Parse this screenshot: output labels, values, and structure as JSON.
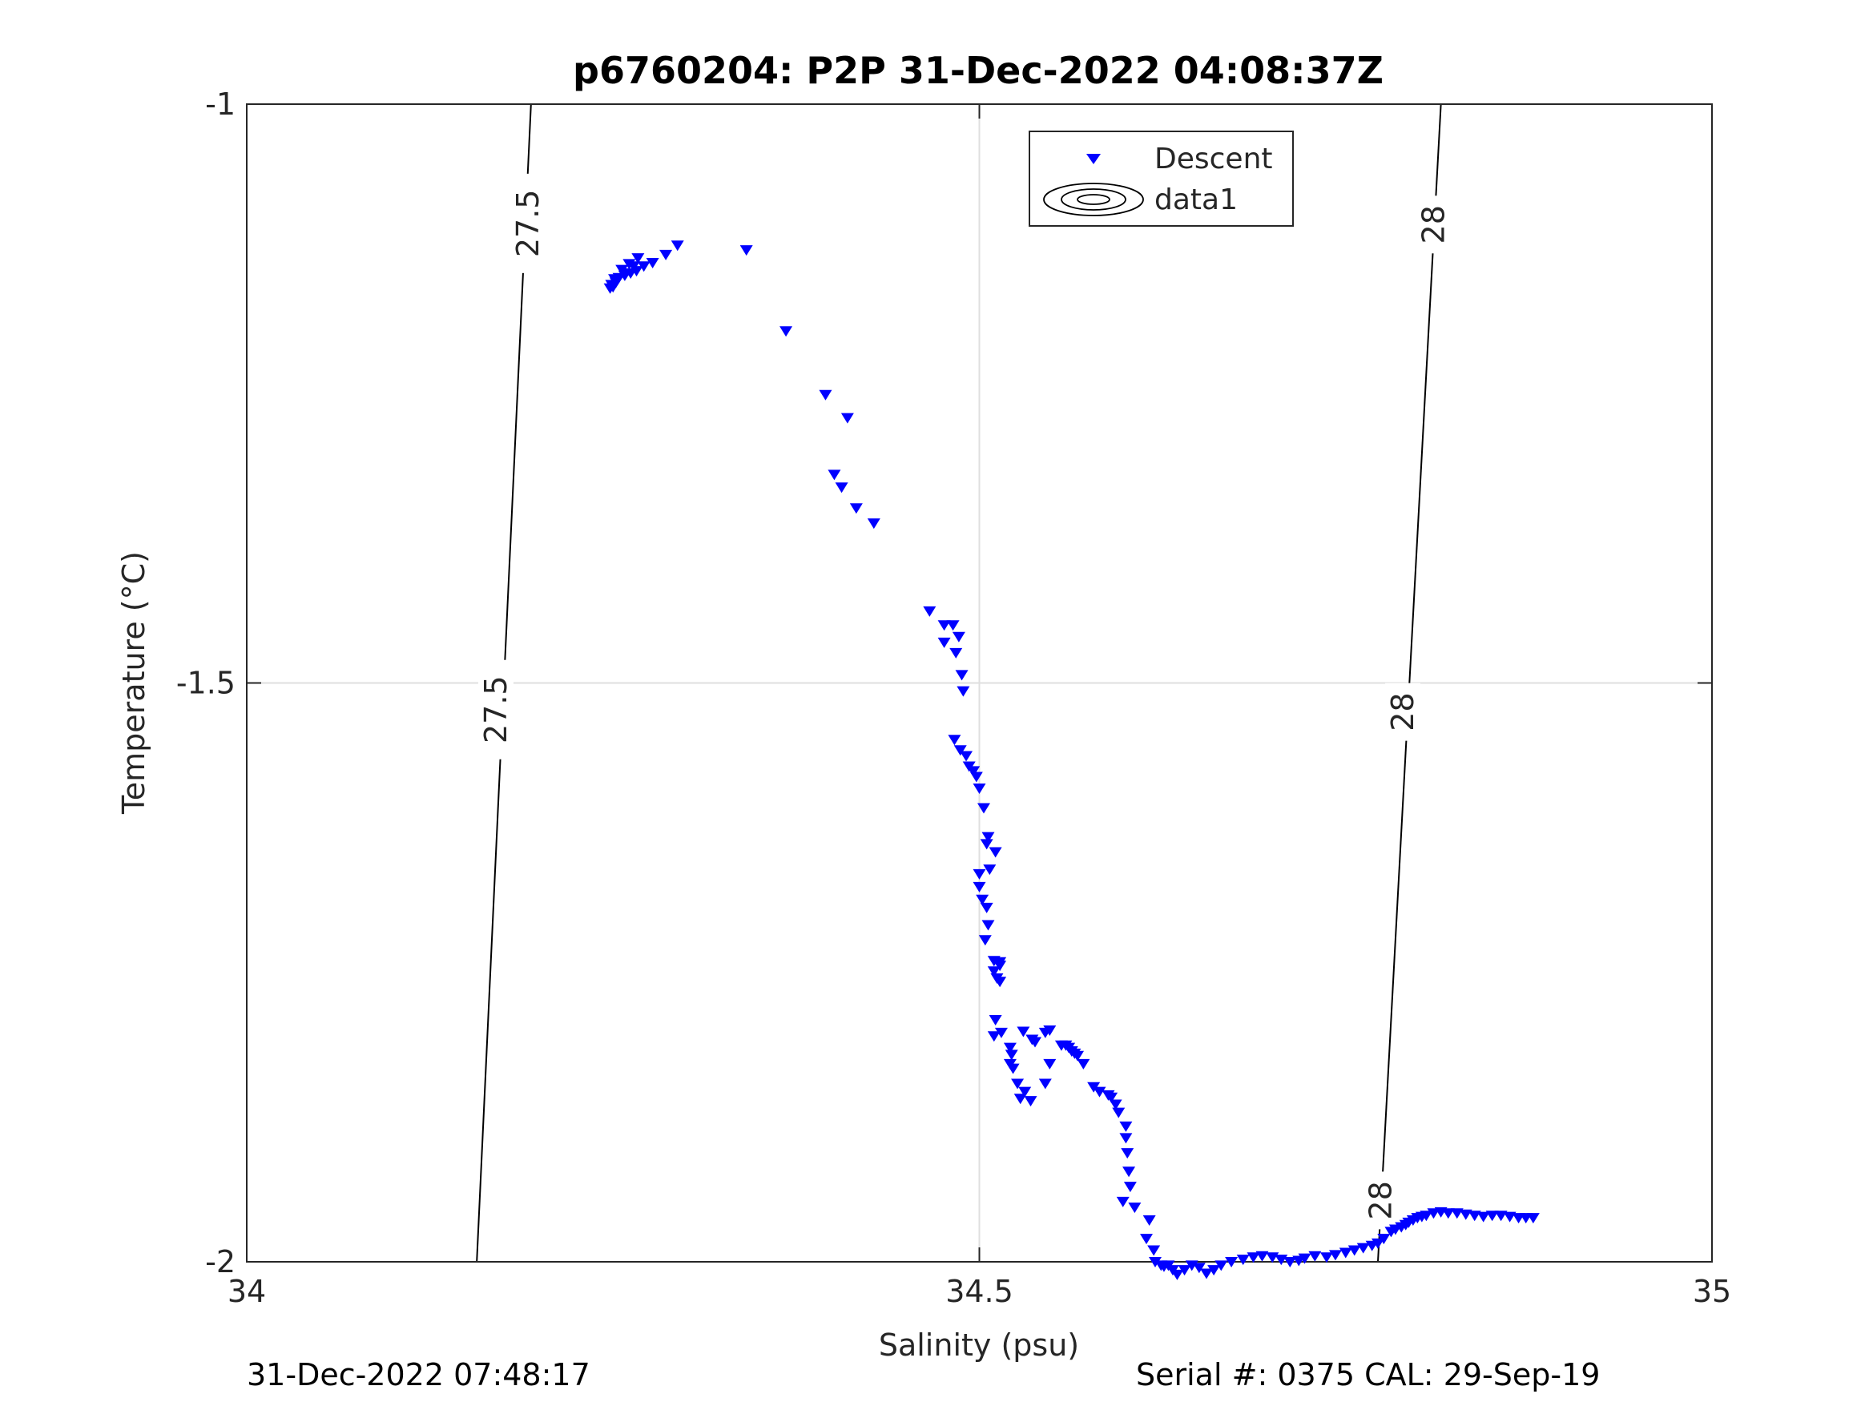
{
  "chart_data": {
    "type": "scatter",
    "title": "p6760204: P2P 31-Dec-2022 04:08:37Z",
    "xlabel": "Salinity (psu)",
    "ylabel": "Temperature (°C)",
    "xlim": [
      34,
      35
    ],
    "ylim": [
      -2,
      -1
    ],
    "xticks": [
      "34",
      "34.5",
      "35"
    ],
    "yticks": [
      "-1",
      "-1.5",
      "-2"
    ],
    "grid": true,
    "legend": {
      "placement": "top-right",
      "entries": [
        "Descent",
        "data1"
      ]
    },
    "series": [
      {
        "name": "Descent",
        "marker": "downward-triangle",
        "color": "#0000ff",
        "points": [
          [
            34.294,
            -1.122
          ],
          [
            34.286,
            -1.13
          ],
          [
            34.277,
            -1.137
          ],
          [
            34.271,
            -1.14
          ],
          [
            34.266,
            -1.144
          ],
          [
            34.262,
            -1.146
          ],
          [
            34.258,
            -1.148
          ],
          [
            34.254,
            -1.15
          ],
          [
            34.252,
            -1.154
          ],
          [
            34.25,
            -1.158
          ],
          [
            34.248,
            -1.159
          ],
          [
            34.267,
            -1.133
          ],
          [
            34.261,
            -1.138
          ],
          [
            34.256,
            -1.143
          ],
          [
            34.251,
            -1.151
          ],
          [
            34.264,
            -1.14
          ],
          [
            34.259,
            -1.146
          ],
          [
            34.253,
            -1.152
          ],
          [
            34.249,
            -1.156
          ],
          [
            34.341,
            -1.126
          ],
          [
            34.368,
            -1.196
          ],
          [
            34.395,
            -1.251
          ],
          [
            34.41,
            -1.271
          ],
          [
            34.401,
            -1.32
          ],
          [
            34.406,
            -1.331
          ],
          [
            34.416,
            -1.349
          ],
          [
            34.428,
            -1.362
          ],
          [
            34.466,
            -1.438
          ],
          [
            34.476,
            -1.45
          ],
          [
            34.482,
            -1.45
          ],
          [
            34.486,
            -1.46
          ],
          [
            34.476,
            -1.465
          ],
          [
            34.484,
            -1.474
          ],
          [
            34.488,
            -1.493
          ],
          [
            34.489,
            -1.507
          ],
          [
            34.483,
            -1.549
          ],
          [
            34.487,
            -1.558
          ],
          [
            34.491,
            -1.563
          ],
          [
            34.493,
            -1.572
          ],
          [
            34.496,
            -1.576
          ],
          [
            34.498,
            -1.581
          ],
          [
            34.5,
            -1.591
          ],
          [
            34.503,
            -1.608
          ],
          [
            34.506,
            -1.633
          ],
          [
            34.505,
            -1.639
          ],
          [
            34.511,
            -1.646
          ],
          [
            34.507,
            -1.661
          ],
          [
            34.5,
            -1.665
          ],
          [
            34.5,
            -1.676
          ],
          [
            34.502,
            -1.687
          ],
          [
            34.505,
            -1.694
          ],
          [
            34.506,
            -1.709
          ],
          [
            34.504,
            -1.722
          ],
          [
            34.51,
            -1.74
          ],
          [
            34.51,
            -1.749
          ],
          [
            34.512,
            -1.755
          ],
          [
            34.514,
            -1.758
          ],
          [
            34.514,
            -1.744
          ],
          [
            34.514,
            -1.741
          ],
          [
            34.511,
            -1.791
          ],
          [
            34.51,
            -1.805
          ],
          [
            34.515,
            -1.802
          ],
          [
            34.521,
            -1.815
          ],
          [
            34.522,
            -1.821
          ],
          [
            34.523,
            -1.833
          ],
          [
            34.521,
            -1.829
          ],
          [
            34.526,
            -1.846
          ],
          [
            34.528,
            -1.859
          ],
          [
            34.531,
            -1.853
          ],
          [
            34.535,
            -1.861
          ],
          [
            34.545,
            -1.846
          ],
          [
            34.548,
            -1.829
          ],
          [
            34.53,
            -1.801
          ],
          [
            34.536,
            -1.808
          ],
          [
            34.538,
            -1.81
          ],
          [
            34.545,
            -1.802
          ],
          [
            34.548,
            -1.8
          ],
          [
            34.556,
            -1.813
          ],
          [
            34.559,
            -1.813
          ],
          [
            34.561,
            -1.815
          ],
          [
            34.563,
            -1.818
          ],
          [
            34.565,
            -1.82
          ],
          [
            34.567,
            -1.822
          ],
          [
            34.571,
            -1.829
          ],
          [
            34.578,
            -1.849
          ],
          [
            34.582,
            -1.853
          ],
          [
            34.588,
            -1.856
          ],
          [
            34.59,
            -1.858
          ],
          [
            34.593,
            -1.864
          ],
          [
            34.595,
            -1.871
          ],
          [
            34.6,
            -1.883
          ],
          [
            34.6,
            -1.893
          ],
          [
            34.601,
            -1.906
          ],
          [
            34.602,
            -1.922
          ],
          [
            34.603,
            -1.935
          ],
          [
            34.598,
            -1.948
          ],
          [
            34.606,
            -1.953
          ],
          [
            34.616,
            -1.964
          ],
          [
            34.614,
            -1.98
          ],
          [
            34.619,
            -1.99
          ],
          [
            34.62,
            -2.0
          ],
          [
            34.624,
            -2.003
          ],
          [
            34.626,
            -2.004
          ],
          [
            34.629,
            -2.003
          ],
          [
            34.632,
            -2.007
          ],
          [
            34.635,
            -2.011
          ],
          [
            34.64,
            -2.007
          ],
          [
            34.645,
            -2.003
          ],
          [
            34.65,
            -2.005
          ],
          [
            34.655,
            -2.01
          ],
          [
            34.66,
            -2.007
          ],
          [
            34.665,
            -2.003
          ],
          [
            34.672,
            -2.0
          ],
          [
            34.68,
            -1.998
          ],
          [
            34.687,
            -1.996
          ],
          [
            34.693,
            -1.995
          ],
          [
            34.7,
            -1.996
          ],
          [
            34.706,
            -1.998
          ],
          [
            34.712,
            -2.0
          ],
          [
            34.718,
            -1.999
          ],
          [
            34.722,
            -1.997
          ],
          [
            34.729,
            -1.995
          ],
          [
            34.737,
            -1.996
          ],
          [
            34.743,
            -1.994
          ],
          [
            34.75,
            -1.992
          ],
          [
            34.756,
            -1.99
          ],
          [
            34.762,
            -1.988
          ],
          [
            34.768,
            -1.986
          ],
          [
            34.772,
            -1.984
          ],
          [
            34.776,
            -1.98
          ],
          [
            34.781,
            -1.974
          ],
          [
            34.784,
            -1.972
          ],
          [
            34.788,
            -1.97
          ],
          [
            34.791,
            -1.968
          ],
          [
            34.793,
            -1.966
          ],
          [
            34.796,
            -1.964
          ],
          [
            34.799,
            -1.962
          ],
          [
            34.802,
            -1.961
          ],
          [
            34.805,
            -1.96
          ],
          [
            34.81,
            -1.958
          ],
          [
            34.815,
            -1.957
          ],
          [
            34.82,
            -1.958
          ],
          [
            34.826,
            -1.958
          ],
          [
            34.832,
            -1.959
          ],
          [
            34.838,
            -1.96
          ],
          [
            34.844,
            -1.961
          ],
          [
            34.85,
            -1.96
          ],
          [
            34.856,
            -1.96
          ],
          [
            34.862,
            -1.961
          ],
          [
            34.868,
            -1.962
          ],
          [
            34.873,
            -1.962
          ],
          [
            34.878,
            -1.962
          ]
        ]
      }
    ],
    "isopycnal_labels": [
      {
        "text": "27.5",
        "x": 34.192,
        "y": -1.103
      },
      {
        "text": "27.5",
        "x": 34.17,
        "y": -1.523
      },
      {
        "text": "28",
        "x": 34.81,
        "y": -1.104
      },
      {
        "text": "28",
        "x": 34.789,
        "y": -1.525
      },
      {
        "text": "28",
        "x": 34.774,
        "y": -1.947
      }
    ]
  },
  "footer": {
    "left": "31-Dec-2022 07:48:17",
    "right": "Serial #: 0375  CAL: 29-Sep-19"
  }
}
